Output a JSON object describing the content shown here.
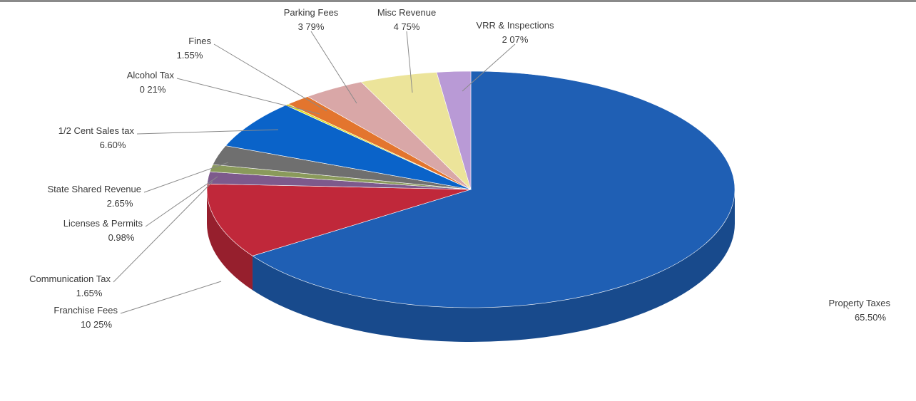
{
  "chart_data": {
    "type": "pie",
    "style": "3d",
    "title": "",
    "legend": "none",
    "slices": [
      {
        "label": "Property Taxes",
        "value": 65.5,
        "display": "65.50%",
        "color": "#1f5fb4"
      },
      {
        "label": "Franchise Fees",
        "value": 10.25,
        "display": "10 25%",
        "color": "#c0283a"
      },
      {
        "label": "Communication Tax",
        "value": 1.65,
        "display": "1.65%",
        "color": "#7d5a8c"
      },
      {
        "label": "Licenses & Permits",
        "value": 0.98,
        "display": "0.98%",
        "color": "#8a9a5b"
      },
      {
        "label": "State Shared Revenue",
        "value": 2.65,
        "display": "2.65%",
        "color": "#6f6f6f"
      },
      {
        "label": "1/2 Cent Sales tax",
        "value": 6.6,
        "display": "6.60%",
        "color": "#0a63c9"
      },
      {
        "label": "Alcohol Tax",
        "value": 0.21,
        "display": "0 21%",
        "color": "#e0e020"
      },
      {
        "label": "Fines",
        "value": 1.55,
        "display": "1.55%",
        "color": "#e3752e"
      },
      {
        "label": "Parking Fees",
        "value": 3.79,
        "display": "3 79%",
        "color": "#d9a7a7"
      },
      {
        "label": "Misc Revenue",
        "value": 4.75,
        "display": "4 75%",
        "color": "#ece49a"
      },
      {
        "label": "VRR & Inspections",
        "value": 2.07,
        "display": "2 07%",
        "color": "#b99ad6"
      }
    ]
  }
}
